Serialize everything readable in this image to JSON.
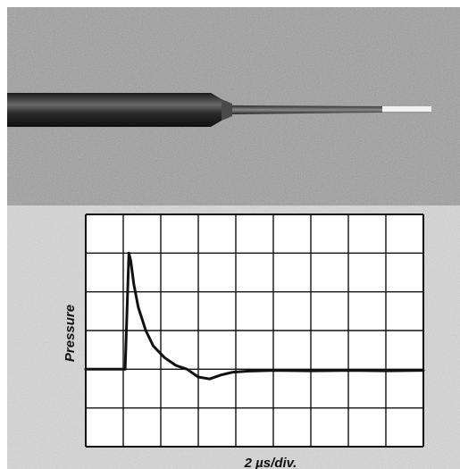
{
  "colors": {
    "photo_background": "#9c9c9c",
    "plot_background": "#d7d7d7",
    "grid_line": "#111111",
    "trace": "#111111",
    "sensor_body": "#3a3a3a"
  },
  "chart_data": {
    "type": "line",
    "xlabel": "2 µs/div.",
    "ylabel": "Pressure",
    "xlim": [
      0,
      9
    ],
    "ylim": [
      0,
      6
    ],
    "grid": true,
    "x_divisions": 9,
    "y_divisions": 6,
    "series": [
      {
        "x": [
          0,
          0.5,
          1.05,
          1.15,
          1.2,
          1.28,
          1.4,
          1.6,
          1.8,
          2.1,
          2.4,
          2.7,
          2.85,
          3.0,
          3.3,
          3.6,
          3.9,
          4.3,
          5.0,
          6.0,
          7.0,
          8.0,
          9.0
        ],
        "values": [
          2.0,
          2.0,
          2.0,
          5.0,
          4.8,
          4.2,
          3.6,
          3.0,
          2.6,
          2.3,
          2.1,
          2.0,
          1.9,
          1.8,
          1.75,
          1.85,
          1.92,
          1.95,
          1.97,
          1.96,
          1.97,
          1.96,
          1.97
        ]
      }
    ]
  }
}
